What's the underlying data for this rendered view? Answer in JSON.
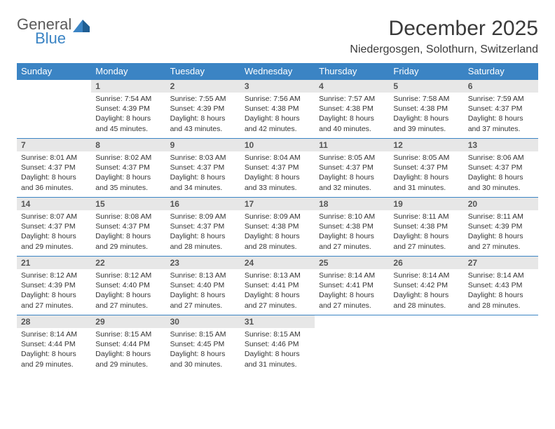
{
  "brand": {
    "line1": "General",
    "line2": "Blue"
  },
  "colors": {
    "accent": "#3b84c4",
    "header_text": "#ffffff",
    "daynum_bg": "#e7e7e7",
    "text": "#333333",
    "title": "#3a3a3a"
  },
  "page": {
    "title": "December 2025",
    "location": "Niedergosgen, Solothurn, Switzerland"
  },
  "weekdays": [
    "Sunday",
    "Monday",
    "Tuesday",
    "Wednesday",
    "Thursday",
    "Friday",
    "Saturday"
  ],
  "first_weekday_index": 1,
  "days": [
    {
      "n": "1",
      "sunrise": "7:54 AM",
      "sunset": "4:39 PM",
      "daylight": "8 hours and 45 minutes."
    },
    {
      "n": "2",
      "sunrise": "7:55 AM",
      "sunset": "4:39 PM",
      "daylight": "8 hours and 43 minutes."
    },
    {
      "n": "3",
      "sunrise": "7:56 AM",
      "sunset": "4:38 PM",
      "daylight": "8 hours and 42 minutes."
    },
    {
      "n": "4",
      "sunrise": "7:57 AM",
      "sunset": "4:38 PM",
      "daylight": "8 hours and 40 minutes."
    },
    {
      "n": "5",
      "sunrise": "7:58 AM",
      "sunset": "4:38 PM",
      "daylight": "8 hours and 39 minutes."
    },
    {
      "n": "6",
      "sunrise": "7:59 AM",
      "sunset": "4:37 PM",
      "daylight": "8 hours and 37 minutes."
    },
    {
      "n": "7",
      "sunrise": "8:01 AM",
      "sunset": "4:37 PM",
      "daylight": "8 hours and 36 minutes."
    },
    {
      "n": "8",
      "sunrise": "8:02 AM",
      "sunset": "4:37 PM",
      "daylight": "8 hours and 35 minutes."
    },
    {
      "n": "9",
      "sunrise": "8:03 AM",
      "sunset": "4:37 PM",
      "daylight": "8 hours and 34 minutes."
    },
    {
      "n": "10",
      "sunrise": "8:04 AM",
      "sunset": "4:37 PM",
      "daylight": "8 hours and 33 minutes."
    },
    {
      "n": "11",
      "sunrise": "8:05 AM",
      "sunset": "4:37 PM",
      "daylight": "8 hours and 32 minutes."
    },
    {
      "n": "12",
      "sunrise": "8:05 AM",
      "sunset": "4:37 PM",
      "daylight": "8 hours and 31 minutes."
    },
    {
      "n": "13",
      "sunrise": "8:06 AM",
      "sunset": "4:37 PM",
      "daylight": "8 hours and 30 minutes."
    },
    {
      "n": "14",
      "sunrise": "8:07 AM",
      "sunset": "4:37 PM",
      "daylight": "8 hours and 29 minutes."
    },
    {
      "n": "15",
      "sunrise": "8:08 AM",
      "sunset": "4:37 PM",
      "daylight": "8 hours and 29 minutes."
    },
    {
      "n": "16",
      "sunrise": "8:09 AM",
      "sunset": "4:37 PM",
      "daylight": "8 hours and 28 minutes."
    },
    {
      "n": "17",
      "sunrise": "8:09 AM",
      "sunset": "4:38 PM",
      "daylight": "8 hours and 28 minutes."
    },
    {
      "n": "18",
      "sunrise": "8:10 AM",
      "sunset": "4:38 PM",
      "daylight": "8 hours and 27 minutes."
    },
    {
      "n": "19",
      "sunrise": "8:11 AM",
      "sunset": "4:38 PM",
      "daylight": "8 hours and 27 minutes."
    },
    {
      "n": "20",
      "sunrise": "8:11 AM",
      "sunset": "4:39 PM",
      "daylight": "8 hours and 27 minutes."
    },
    {
      "n": "21",
      "sunrise": "8:12 AM",
      "sunset": "4:39 PM",
      "daylight": "8 hours and 27 minutes."
    },
    {
      "n": "22",
      "sunrise": "8:12 AM",
      "sunset": "4:40 PM",
      "daylight": "8 hours and 27 minutes."
    },
    {
      "n": "23",
      "sunrise": "8:13 AM",
      "sunset": "4:40 PM",
      "daylight": "8 hours and 27 minutes."
    },
    {
      "n": "24",
      "sunrise": "8:13 AM",
      "sunset": "4:41 PM",
      "daylight": "8 hours and 27 minutes."
    },
    {
      "n": "25",
      "sunrise": "8:14 AM",
      "sunset": "4:41 PM",
      "daylight": "8 hours and 27 minutes."
    },
    {
      "n": "26",
      "sunrise": "8:14 AM",
      "sunset": "4:42 PM",
      "daylight": "8 hours and 28 minutes."
    },
    {
      "n": "27",
      "sunrise": "8:14 AM",
      "sunset": "4:43 PM",
      "daylight": "8 hours and 28 minutes."
    },
    {
      "n": "28",
      "sunrise": "8:14 AM",
      "sunset": "4:44 PM",
      "daylight": "8 hours and 29 minutes."
    },
    {
      "n": "29",
      "sunrise": "8:15 AM",
      "sunset": "4:44 PM",
      "daylight": "8 hours and 29 minutes."
    },
    {
      "n": "30",
      "sunrise": "8:15 AM",
      "sunset": "4:45 PM",
      "daylight": "8 hours and 30 minutes."
    },
    {
      "n": "31",
      "sunrise": "8:15 AM",
      "sunset": "4:46 PM",
      "daylight": "8 hours and 31 minutes."
    }
  ],
  "labels": {
    "sunrise": "Sunrise:",
    "sunset": "Sunset:",
    "daylight": "Daylight:"
  }
}
